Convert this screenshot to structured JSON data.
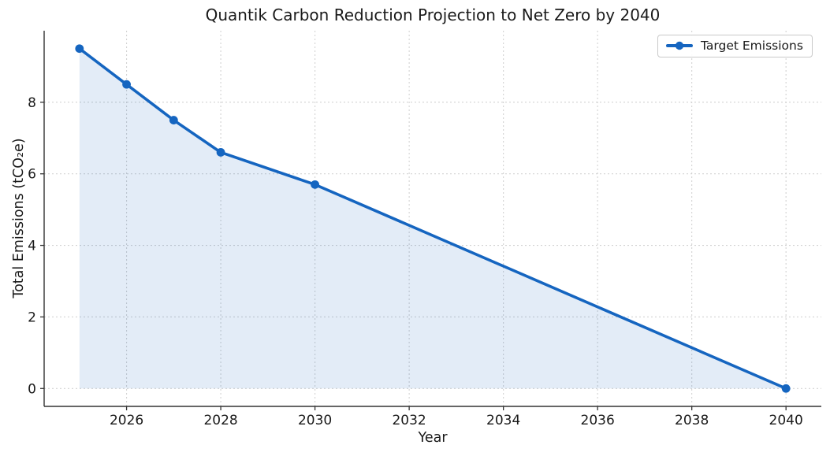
{
  "chart_data": {
    "type": "line",
    "title": "Quantik Carbon Reduction Projection to Net Zero by 2040",
    "xlabel": "Year",
    "ylabel": "Total Emissions (tCO₂e)",
    "series": [
      {
        "name": "Target Emissions",
        "x": [
          2025,
          2026,
          2027,
          2028,
          2030,
          2040
        ],
        "y": [
          9.5,
          8.5,
          7.5,
          6.6,
          5.7,
          0.0
        ],
        "color": "#1565c0",
        "marker": "circle",
        "fill_to_zero": true,
        "fill_alpha": 0.12
      }
    ],
    "xlim": [
      2024.25,
      2040.75
    ],
    "ylim": [
      -0.5,
      10.0
    ],
    "xticks": [
      2026,
      2028,
      2030,
      2032,
      2034,
      2036,
      2038,
      2040
    ],
    "yticks": [
      0,
      2,
      4,
      6,
      8
    ],
    "grid": true,
    "grid_style": "dashed",
    "legend_position": "upper right"
  },
  "colors": {
    "line": "#1565c0",
    "grid": "#d2d2d2",
    "spine": "#333333",
    "text": "#1a1a1a",
    "background": "#ffffff"
  }
}
